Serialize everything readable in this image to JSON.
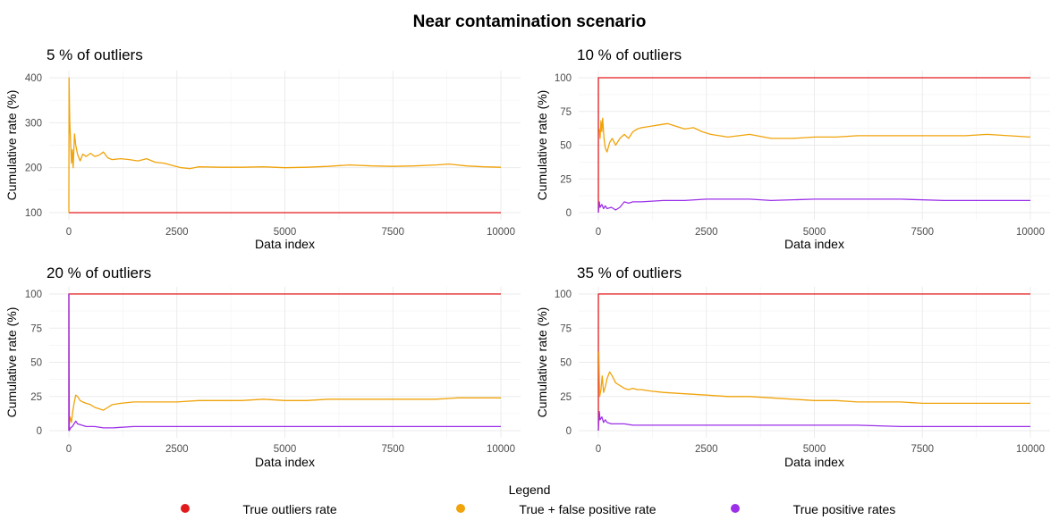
{
  "figure": {
    "title": "Near contamination scenario",
    "legend": {
      "title": "Legend",
      "position": "bottom",
      "items": [
        {
          "label": "True outliers rate",
          "color": "#e31a1c",
          "marker": "dot"
        },
        {
          "label": "True + false positive rate",
          "color": "#f0a30a",
          "marker": "dot"
        },
        {
          "label": "True positive rates",
          "color": "#9b30e8",
          "marker": "dot"
        }
      ]
    }
  },
  "chart_data": [
    {
      "type": "line",
      "title": "5 % of outliers",
      "xlabel": "Data index",
      "ylabel": "Cumulative rate (%)",
      "xlim": [
        0,
        10000
      ],
      "ylim": [
        100,
        400
      ],
      "xticks": [
        0,
        2500,
        5000,
        7500,
        10000
      ],
      "yticks": [
        100,
        200,
        300,
        400
      ],
      "grid": true,
      "series": [
        {
          "name": "True outliers rate",
          "color": "#e31a1c",
          "x": [
            0,
            10000
          ],
          "y": [
            100,
            100
          ]
        },
        {
          "name": "True + false positive rate",
          "color": "#f0a30a",
          "x": [
            0,
            5,
            20,
            40,
            60,
            80,
            100,
            130,
            160,
            200,
            260,
            320,
            400,
            500,
            600,
            700,
            800,
            900,
            1000,
            1200,
            1400,
            1600,
            1800,
            2000,
            2200,
            2400,
            2600,
            2800,
            3000,
            3500,
            4000,
            4500,
            5000,
            5500,
            6000,
            6500,
            7000,
            7500,
            8000,
            8500,
            8800,
            9200,
            9600,
            10000
          ],
          "y": [
            100,
            400,
            300,
            260,
            210,
            240,
            200,
            275,
            250,
            230,
            215,
            230,
            225,
            232,
            225,
            228,
            235,
            222,
            218,
            220,
            218,
            215,
            220,
            212,
            210,
            205,
            200,
            198,
            202,
            201,
            201,
            202,
            200,
            201,
            203,
            206,
            204,
            203,
            204,
            206,
            208,
            204,
            202,
            201
          ]
        }
      ]
    },
    {
      "type": "line",
      "title": "10 % of outliers",
      "xlabel": "Data index",
      "ylabel": "Cumulative rate (%)",
      "xlim": [
        0,
        10000
      ],
      "ylim": [
        0,
        100
      ],
      "xticks": [
        0,
        2500,
        5000,
        7500,
        10000
      ],
      "yticks": [
        0,
        25,
        50,
        75,
        100
      ],
      "grid": true,
      "series": [
        {
          "name": "True outliers rate",
          "color": "#e31a1c",
          "x": [
            0,
            0,
            10000
          ],
          "y": [
            0,
            100,
            100
          ]
        },
        {
          "name": "True + false positive rate",
          "color": "#f0a30a",
          "x": [
            20,
            40,
            60,
            80,
            100,
            130,
            160,
            200,
            260,
            320,
            400,
            500,
            600,
            700,
            800,
            900,
            1000,
            1200,
            1400,
            1600,
            1800,
            2000,
            2200,
            2400,
            2600,
            2800,
            3000,
            3500,
            4000,
            4500,
            5000,
            5500,
            6000,
            6500,
            7000,
            7500,
            8000,
            8500,
            9000,
            9500,
            10000
          ],
          "y": [
            62,
            55,
            68,
            60,
            70,
            55,
            48,
            45,
            52,
            55,
            50,
            55,
            58,
            55,
            60,
            62,
            63,
            64,
            65,
            66,
            64,
            62,
            63,
            60,
            58,
            57,
            56,
            58,
            55,
            55,
            56,
            56,
            57,
            57,
            57,
            57,
            57,
            57,
            58,
            57,
            56
          ]
        },
        {
          "name": "True positive rates",
          "color": "#9b30e8",
          "x": [
            0,
            20,
            40,
            80,
            120,
            160,
            200,
            300,
            400,
            500,
            600,
            700,
            800,
            1000,
            1500,
            2000,
            2500,
            3000,
            3500,
            4000,
            5000,
            6000,
            7000,
            8000,
            9000,
            10000
          ],
          "y": [
            0,
            8,
            4,
            6,
            3,
            5,
            3,
            4,
            2,
            4,
            8,
            7,
            8,
            8,
            9,
            9,
            10,
            10,
            10,
            9,
            10,
            10,
            10,
            9,
            9,
            9
          ]
        }
      ]
    },
    {
      "type": "line",
      "title": "20 % of outliers",
      "xlabel": "Data index",
      "ylabel": "Cumulative rate (%)",
      "xlim": [
        0,
        10000
      ],
      "ylim": [
        0,
        100
      ],
      "xticks": [
        0,
        2500,
        5000,
        7500,
        10000
      ],
      "yticks": [
        0,
        25,
        50,
        75,
        100
      ],
      "grid": true,
      "series": [
        {
          "name": "True outliers rate",
          "color": "#e31a1c",
          "x": [
            0,
            0,
            10000
          ],
          "y": [
            0,
            100,
            100
          ]
        },
        {
          "name": "True + false positive rate",
          "color": "#f0a30a",
          "x": [
            0,
            30,
            60,
            90,
            120,
            160,
            200,
            260,
            320,
            400,
            500,
            600,
            700,
            800,
            900,
            1000,
            1200,
            1500,
            2000,
            2500,
            3000,
            3500,
            4000,
            4500,
            5000,
            5500,
            6000,
            6500,
            7000,
            7500,
            8000,
            8500,
            9000,
            9500,
            10000
          ],
          "y": [
            2,
            10,
            6,
            14,
            20,
            26,
            25,
            22,
            21,
            20,
            19,
            17,
            16,
            15,
            17,
            19,
            20,
            21,
            21,
            21,
            22,
            22,
            22,
            23,
            22,
            22,
            23,
            23,
            23,
            23,
            23,
            23,
            24,
            24,
            24
          ]
        },
        {
          "name": "True positive rates",
          "color": "#9b30e8",
          "x": [
            0,
            0,
            10,
            40,
            80,
            120,
            160,
            200,
            300,
            400,
            600,
            800,
            1000,
            1500,
            2000,
            3000,
            4000,
            5000,
            6000,
            7000,
            8000,
            9000,
            10000
          ],
          "y": [
            0,
            100,
            0,
            2,
            3,
            5,
            7,
            5,
            4,
            3,
            3,
            2,
            2,
            3,
            3,
            3,
            3,
            3,
            3,
            3,
            3,
            3,
            3
          ]
        }
      ]
    },
    {
      "type": "line",
      "title": "35 % of outliers",
      "xlabel": "Data index",
      "ylabel": "Cumulative rate (%)",
      "xlim": [
        0,
        10000
      ],
      "ylim": [
        0,
        100
      ],
      "xticks": [
        0,
        2500,
        5000,
        7500,
        10000
      ],
      "yticks": [
        0,
        25,
        50,
        75,
        100
      ],
      "grid": true,
      "series": [
        {
          "name": "True outliers rate",
          "color": "#e31a1c",
          "x": [
            0,
            0,
            10000
          ],
          "y": [
            0,
            100,
            100
          ]
        },
        {
          "name": "True + false positive rate",
          "color": "#f0a30a",
          "x": [
            10,
            30,
            60,
            90,
            120,
            160,
            200,
            260,
            320,
            400,
            500,
            600,
            700,
            800,
            900,
            1000,
            1200,
            1500,
            2000,
            2500,
            3000,
            3500,
            4000,
            4500,
            5000,
            5500,
            6000,
            6500,
            7000,
            7500,
            8000,
            8500,
            9000,
            9500,
            10000
          ],
          "y": [
            58,
            25,
            30,
            40,
            28,
            32,
            38,
            43,
            40,
            35,
            33,
            31,
            30,
            31,
            30,
            30,
            29,
            28,
            27,
            26,
            25,
            25,
            24,
            23,
            22,
            22,
            21,
            21,
            21,
            20,
            20,
            20,
            20,
            20,
            20
          ]
        },
        {
          "name": "True positive rates",
          "color": "#9b30e8",
          "x": [
            0,
            20,
            40,
            80,
            120,
            160,
            200,
            300,
            400,
            600,
            800,
            1000,
            1500,
            2000,
            3000,
            4000,
            5000,
            6000,
            7000,
            8000,
            9000,
            10000
          ],
          "y": [
            0,
            14,
            8,
            10,
            6,
            8,
            6,
            5,
            5,
            5,
            4,
            4,
            4,
            4,
            4,
            4,
            4,
            4,
            3,
            3,
            3,
            3
          ]
        }
      ]
    }
  ]
}
